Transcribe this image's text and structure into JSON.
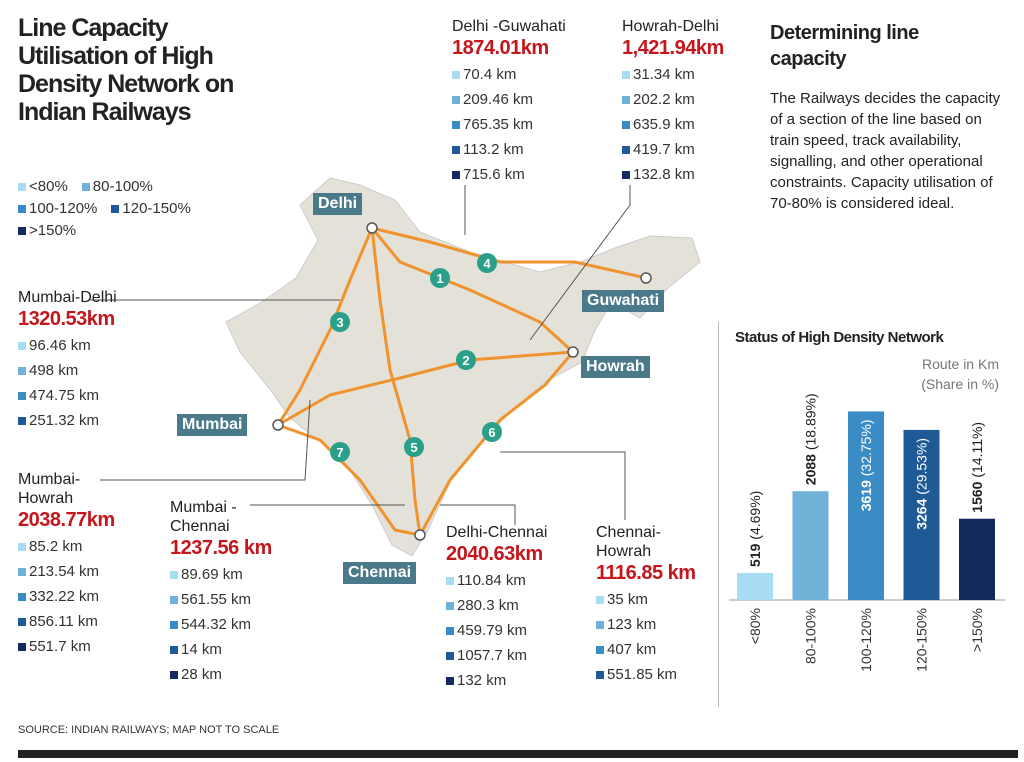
{
  "title": "Line Capacity Utilisation of High Density Network on Indian Railways",
  "legend": [
    {
      "label": "<80%",
      "color": "#a8dcf2"
    },
    {
      "label": "80-100%",
      "color": "#6eb2d8"
    },
    {
      "label": "100-120%",
      "color": "#3a8cc4"
    },
    {
      "label": "120-150%",
      "color": "#1f5a96"
    },
    {
      "label": ">150%",
      "color": "#142a5e"
    }
  ],
  "routes": [
    {
      "name": "Delhi -Guwahati",
      "total": "1874.01km",
      "values": [
        "70.4 km",
        "209.46 km",
        "765.35 km",
        "113.2 km",
        "715.6 km"
      ]
    },
    {
      "name": "Howrah-Delhi",
      "total": "1,421.94km",
      "values": [
        "31.34 km",
        "202.2 km",
        "635.9 km",
        "419.7 km",
        "132.8 km"
      ]
    },
    {
      "name": "Mumbai-Delhi",
      "total": "1320.53km",
      "values": [
        "96.46 km",
        "498 km",
        "474.75 km",
        "251.32 km"
      ]
    },
    {
      "name": "Mumbai-\nHowrah",
      "total": "2038.77km",
      "values": [
        "85.2 km",
        "213.54 km",
        "332.22 km",
        "856.11 km",
        "551.7 km"
      ]
    },
    {
      "name": "Mumbai -\nChennai",
      "total": "1237.56 km",
      "values": [
        "89.69 km",
        "561.55 km",
        "544.32 km",
        "14 km",
        "28 km"
      ]
    },
    {
      "name": "Delhi-Chennai",
      "total": "2040.63km",
      "values": [
        "110.84 km",
        "280.3 km",
        "459.79 km",
        "1057.7 km",
        "132 km"
      ]
    },
    {
      "name": "Chennai-\nHowrah",
      "total": "1116.85 km",
      "values": [
        "35 km",
        "123 km",
        "407 km",
        "551.85 km"
      ]
    }
  ],
  "cities": [
    "Delhi",
    "Guwahati",
    "Howrah",
    "Mumbai",
    "Chennai"
  ],
  "route_markers": [
    "1",
    "2",
    "3",
    "4",
    "5",
    "6",
    "7"
  ],
  "side": {
    "heading": "Determining line capacity",
    "text": "The Railways decides the capacity of a section of the line based on train speed, track availability, signalling, and other operational constraints. Capacity utilisation of 70-80% is considered ideal."
  },
  "source": "SOURCE: INDIAN RAILWAYS; MAP NOT TO SCALE",
  "map_colors": {
    "land": "#e4e2d8",
    "route": "#f0932e",
    "label_bg": "#4a7a8a",
    "highlight": "#c4161c"
  },
  "chart_data": {
    "type": "bar",
    "title": "Status of High Density Network",
    "unit_note": "Route in Km (Share in %)",
    "categories": [
      "<80%",
      "80-100%",
      "100-120%",
      "120-150%",
      ">150%"
    ],
    "values": [
      519,
      2088,
      3619,
      3264,
      1560
    ],
    "shares": [
      "(4.69%)",
      "(18.89%)",
      "(32.75%)",
      "(29.53%)",
      "(14.11%)"
    ],
    "colors": [
      "#a8dcf2",
      "#6eb2d8",
      "#3a8cc4",
      "#1f5a96",
      "#142a5e"
    ],
    "ylim": [
      0,
      3800
    ],
    "grid": false
  }
}
